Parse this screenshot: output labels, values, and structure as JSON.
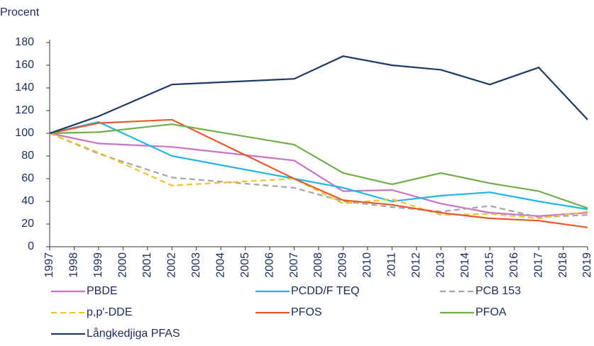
{
  "chart_data": {
    "type": "line",
    "ylabel": "Procent",
    "x": [
      1997,
      1999,
      2002,
      2007,
      2009,
      2011,
      2013,
      2015,
      2017,
      2019
    ],
    "xlim": [
      1997,
      2019
    ],
    "xticks": [
      1997,
      1998,
      1999,
      2000,
      2001,
      2002,
      2003,
      2004,
      2005,
      2006,
      2007,
      2008,
      2009,
      2010,
      2011,
      2012,
      2013,
      2014,
      2015,
      2016,
      2017,
      2018,
      2019
    ],
    "ylim": [
      0,
      180
    ],
    "yticks": [
      0,
      20,
      40,
      60,
      80,
      100,
      120,
      140,
      160,
      180
    ],
    "grid": false,
    "legend": "bottom",
    "series": [
      {
        "name": "PBDE",
        "color": "#c774c6",
        "dashed": false,
        "values": [
          100,
          91,
          88,
          76,
          49,
          50,
          38,
          30,
          27,
          30
        ]
      },
      {
        "name": "PCDD/F TEQ",
        "color": "#1fb5e6",
        "dashed": false,
        "values": [
          100,
          110,
          80,
          60,
          52,
          40,
          45,
          48,
          40,
          33
        ]
      },
      {
        "name": "PCB 153",
        "color": "#a5a5a5",
        "dashed": true,
        "values": [
          100,
          82,
          61,
          52,
          40,
          35,
          31,
          36,
          26,
          28
        ]
      },
      {
        "name": "p,p'-DDE",
        "color": "#f5c12b",
        "dashed": true,
        "values": [
          100,
          83,
          54,
          60,
          38,
          42,
          28,
          29,
          25,
          31
        ]
      },
      {
        "name": "PFOS",
        "color": "#e8582d",
        "dashed": false,
        "values": [
          100,
          109,
          112,
          60,
          41,
          37,
          30,
          25,
          23,
          17
        ]
      },
      {
        "name": "PFOA",
        "color": "#70ad47",
        "dashed": false,
        "values": [
          100,
          101,
          108,
          90,
          65,
          55,
          65,
          56,
          49,
          34
        ]
      },
      {
        "name": "Långkedjiga PFAS",
        "color": "#1f3864",
        "dashed": false,
        "values": [
          100,
          115,
          143,
          148,
          168,
          160,
          156,
          143,
          158,
          112
        ]
      }
    ]
  }
}
